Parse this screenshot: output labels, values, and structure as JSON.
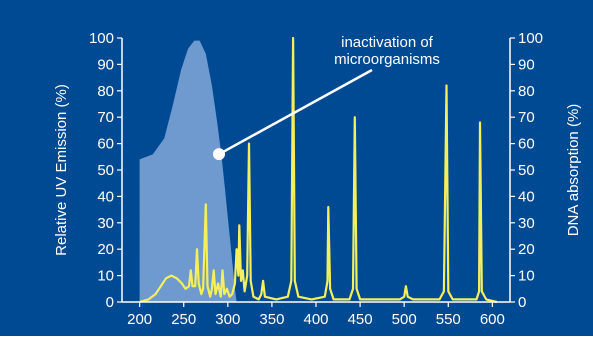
{
  "chart_data": {
    "type": "line",
    "title": "",
    "xlabel": "",
    "ylabel_left": "Relative UV Emission (%)",
    "ylabel_right": "DNA absorption (%)",
    "xlim": [
      180,
      620
    ],
    "ylim": [
      0,
      100
    ],
    "x_ticks": [
      "200",
      "250",
      "300",
      "350",
      "400",
      "450",
      "500",
      "550",
      "600"
    ],
    "y_ticks_left": [
      "0",
      "10",
      "20",
      "30",
      "40",
      "50",
      "60",
      "70",
      "80",
      "90",
      "100"
    ],
    "y_ticks_right": [
      "0",
      "10",
      "20",
      "30",
      "40",
      "50",
      "60",
      "70",
      "80",
      "90",
      "100"
    ],
    "annotation": {
      "line1": "inactivation of",
      "line2": "microorganisms",
      "x": 290,
      "y": 56
    },
    "colors": {
      "background": "#004a93",
      "dna_fill": "#7aa3d6",
      "emission_line": "#f5f05a",
      "axis": "#ffffff"
    },
    "series": [
      {
        "values": [
          {
            "x": 200,
            "y": 54
          },
          {
            "x": 215,
            "y": 56
          },
          {
            "x": 228,
            "y": 62
          },
          {
            "x": 238,
            "y": 75
          },
          {
            "x": 247,
            "y": 88
          },
          {
            "x": 255,
            "y": 96
          },
          {
            "x": 262,
            "y": 99
          },
          {
            "x": 268,
            "y": 99
          },
          {
            "x": 275,
            "y": 94
          },
          {
            "x": 282,
            "y": 82
          },
          {
            "x": 288,
            "y": 68
          },
          {
            "x": 293,
            "y": 55
          },
          {
            "x": 297,
            "y": 42
          },
          {
            "x": 300,
            "y": 32
          },
          {
            "x": 303,
            "y": 22
          },
          {
            "x": 306,
            "y": 12
          },
          {
            "x": 308,
            "y": 5
          },
          {
            "x": 310,
            "y": 0
          }
        ]
      },
      {
        "values": [
          {
            "x": 200,
            "y": 0
          },
          {
            "x": 210,
            "y": 1
          },
          {
            "x": 218,
            "y": 3
          },
          {
            "x": 224,
            "y": 6
          },
          {
            "x": 230,
            "y": 9
          },
          {
            "x": 236,
            "y": 10
          },
          {
            "x": 242,
            "y": 9
          },
          {
            "x": 248,
            "y": 7
          },
          {
            "x": 252,
            "y": 5
          },
          {
            "x": 256,
            "y": 6
          },
          {
            "x": 258,
            "y": 12
          },
          {
            "x": 260,
            "y": 6
          },
          {
            "x": 263,
            "y": 6
          },
          {
            "x": 265,
            "y": 20
          },
          {
            "x": 267,
            "y": 7
          },
          {
            "x": 270,
            "y": 3
          },
          {
            "x": 272,
            "y": 5
          },
          {
            "x": 275,
            "y": 37
          },
          {
            "x": 277,
            "y": 6
          },
          {
            "x": 280,
            "y": 2
          },
          {
            "x": 282,
            "y": 5
          },
          {
            "x": 284,
            "y": 12
          },
          {
            "x": 286,
            "y": 3
          },
          {
            "x": 289,
            "y": 7
          },
          {
            "x": 292,
            "y": 2
          },
          {
            "x": 294,
            "y": 12
          },
          {
            "x": 296,
            "y": 3
          },
          {
            "x": 299,
            "y": 5
          },
          {
            "x": 302,
            "y": 2
          },
          {
            "x": 305,
            "y": 3
          },
          {
            "x": 308,
            "y": 7
          },
          {
            "x": 310,
            "y": 20
          },
          {
            "x": 312,
            "y": 10
          },
          {
            "x": 313,
            "y": 29
          },
          {
            "x": 315,
            "y": 8
          },
          {
            "x": 317,
            "y": 12
          },
          {
            "x": 319,
            "y": 4
          },
          {
            "x": 322,
            "y": 10
          },
          {
            "x": 324,
            "y": 60
          },
          {
            "x": 326,
            "y": 8
          },
          {
            "x": 329,
            "y": 2
          },
          {
            "x": 335,
            "y": 1
          },
          {
            "x": 338,
            "y": 3
          },
          {
            "x": 340,
            "y": 8
          },
          {
            "x": 342,
            "y": 2
          },
          {
            "x": 355,
            "y": 1
          },
          {
            "x": 368,
            "y": 2
          },
          {
            "x": 372,
            "y": 8
          },
          {
            "x": 374,
            "y": 100
          },
          {
            "x": 376,
            "y": 8
          },
          {
            "x": 380,
            "y": 2
          },
          {
            "x": 395,
            "y": 1
          },
          {
            "x": 410,
            "y": 2
          },
          {
            "x": 413,
            "y": 8
          },
          {
            "x": 414,
            "y": 36
          },
          {
            "x": 416,
            "y": 5
          },
          {
            "x": 420,
            "y": 1
          },
          {
            "x": 438,
            "y": 1
          },
          {
            "x": 442,
            "y": 5
          },
          {
            "x": 444,
            "y": 70
          },
          {
            "x": 446,
            "y": 5
          },
          {
            "x": 450,
            "y": 1
          },
          {
            "x": 495,
            "y": 1
          },
          {
            "x": 500,
            "y": 2
          },
          {
            "x": 502,
            "y": 6
          },
          {
            "x": 504,
            "y": 2
          },
          {
            "x": 510,
            "y": 1
          },
          {
            "x": 540,
            "y": 1
          },
          {
            "x": 545,
            "y": 4
          },
          {
            "x": 548,
            "y": 82
          },
          {
            "x": 550,
            "y": 4
          },
          {
            "x": 555,
            "y": 1
          },
          {
            "x": 582,
            "y": 1
          },
          {
            "x": 585,
            "y": 4
          },
          {
            "x": 586,
            "y": 68
          },
          {
            "x": 588,
            "y": 4
          },
          {
            "x": 593,
            "y": 1
          },
          {
            "x": 605,
            "y": 0
          }
        ]
      }
    ]
  }
}
